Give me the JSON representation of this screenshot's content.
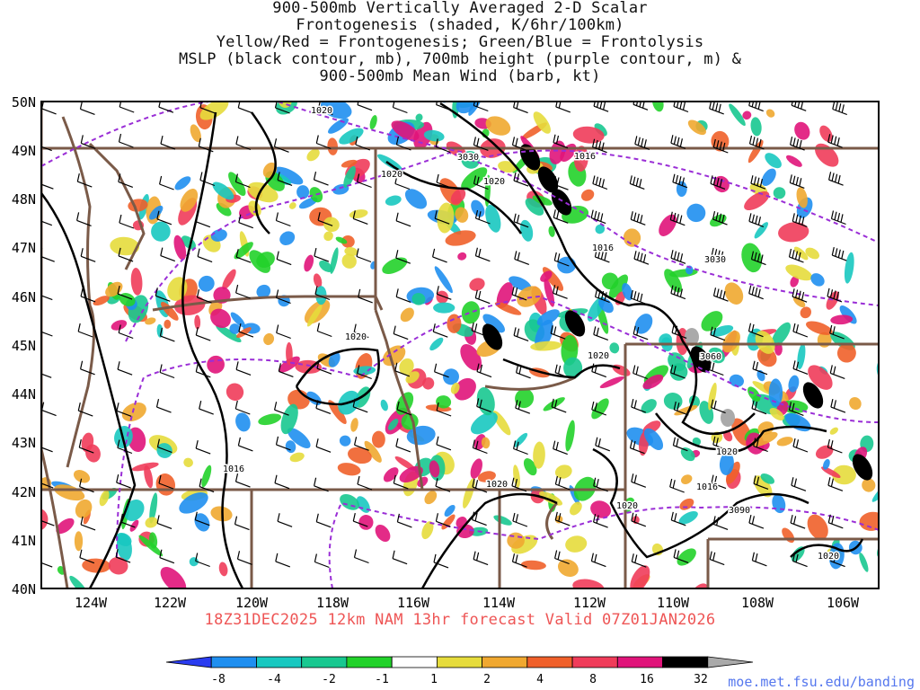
{
  "title_lines": [
    "900-500mb Vertically Averaged 2-D Scalar",
    "Frontogenesis (shaded, K/6hr/100km)",
    "Yellow/Red = Frontogenesis;  Green/Blue = Frontolysis",
    "MSLP (black contour, mb), 700mb height (purple contour, m) &",
    "900-500mb Mean Wind (barb, kt)"
  ],
  "lat_labels": [
    "50N",
    "49N",
    "48N",
    "47N",
    "46N",
    "45N",
    "44N",
    "43N",
    "42N",
    "41N",
    "40N"
  ],
  "lon_labels": [
    "124W",
    "122W",
    "120W",
    "118W",
    "116W",
    "114W",
    "112W",
    "110W",
    "108W",
    "106W"
  ],
  "valid_text": "18Z31DEC2025 12km NAM 13hr forecast Valid 07Z01JAN2026",
  "credit": "moe.met.fsu.edu/banding",
  "mslp_labels": [
    "1020",
    "1020",
    "1020",
    "1016",
    "1016",
    "1020",
    "1020",
    "1016",
    "1020",
    "1020",
    "1016",
    "1020",
    "1020"
  ],
  "height_labels": [
    "3030",
    "3030",
    "3060",
    "3090"
  ],
  "colorbar": {
    "labels": [
      "-8",
      "-4",
      "-2",
      "-1",
      "1",
      "2",
      "4",
      "8",
      "16",
      "32"
    ],
    "colors": [
      "#2a3cf0",
      "#1f8ff0",
      "#18c8c0",
      "#18c890",
      "#22d22a",
      "#ffffff",
      "#e6dc3c",
      "#f0a830",
      "#f0602a",
      "#f03c5a",
      "#e0147a",
      "#000000",
      "#aaaaaa"
    ]
  },
  "colors": {
    "state_border": "#7a5a48",
    "mslp": "#000000",
    "height": "#9a2ed6",
    "barb": "#000000"
  }
}
